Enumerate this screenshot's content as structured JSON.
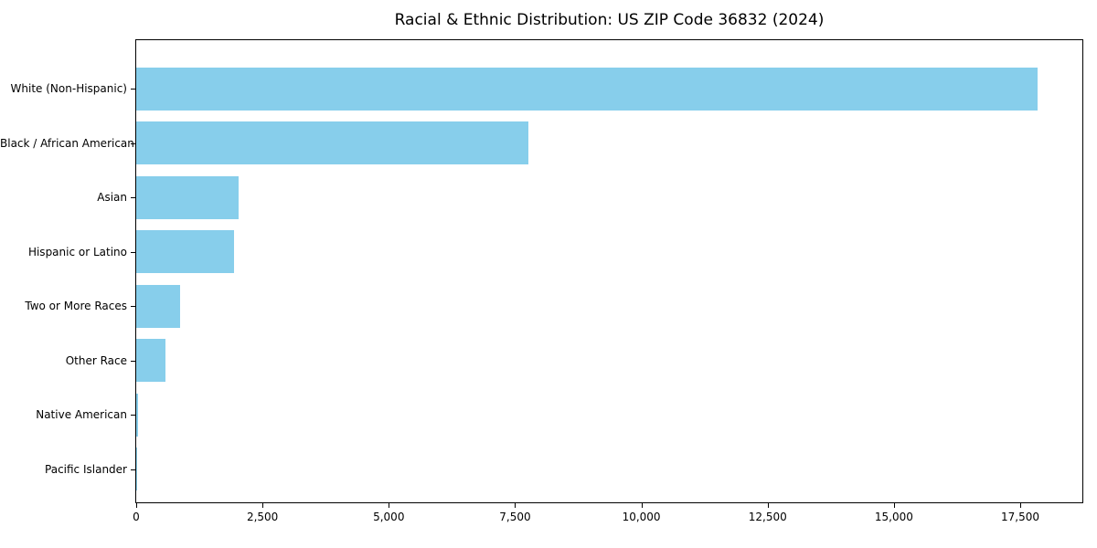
{
  "chart_data": {
    "type": "bar",
    "orientation": "horizontal",
    "title": "Racial & Ethnic Distribution: US ZIP Code 36832 (2024)",
    "categories": [
      "White (Non-Hispanic)",
      "Black / African American",
      "Asian",
      "Hispanic or Latino",
      "Two or More Races",
      "Other Race",
      "Native American",
      "Pacific Islander"
    ],
    "values": [
      17850,
      7770,
      2020,
      1930,
      870,
      580,
      40,
      15
    ],
    "xlabel": "",
    "ylabel": "",
    "xlim": [
      0,
      18730
    ],
    "x_ticks": [
      {
        "value": 0,
        "label": "0"
      },
      {
        "value": 2500,
        "label": "2,500"
      },
      {
        "value": 5000,
        "label": "5,000"
      },
      {
        "value": 7500,
        "label": "7,500"
      },
      {
        "value": 10000,
        "label": "10,000"
      },
      {
        "value": 12500,
        "label": "12,500"
      },
      {
        "value": 15000,
        "label": "15,000"
      },
      {
        "value": 17500,
        "label": "17,500"
      }
    ],
    "bar_color": "#87CEEB",
    "grid": false,
    "legend": null
  }
}
